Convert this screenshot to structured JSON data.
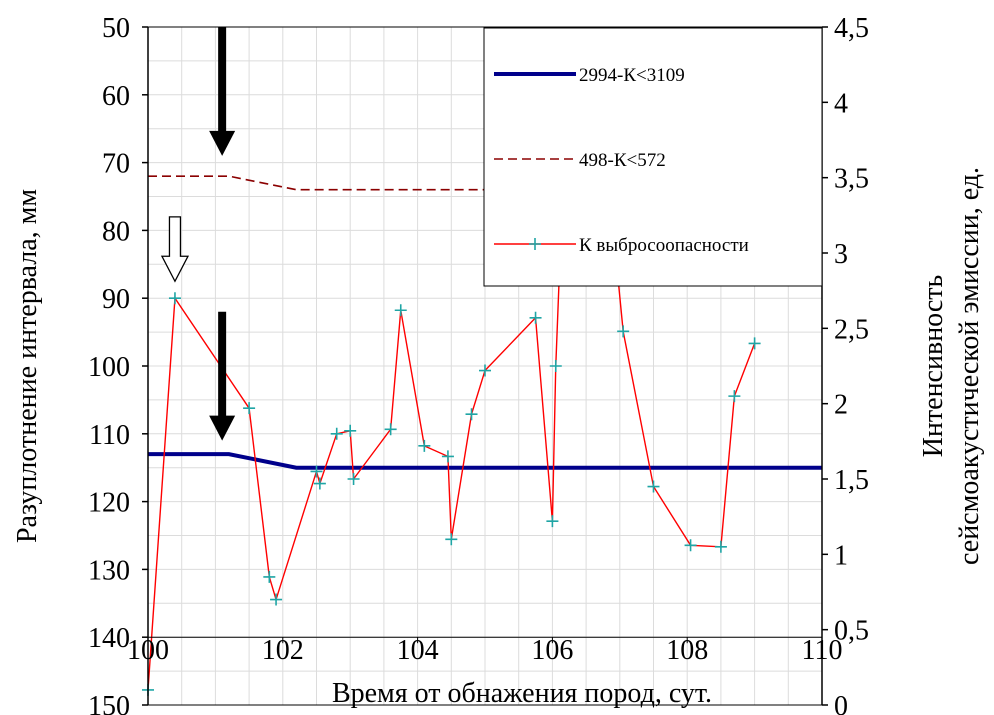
{
  "chart_data": {
    "type": "line",
    "xlabel": "Время от обнажения пород, сут.",
    "ylabel_left": "Разуплотнение интервала, мм",
    "ylabel_right_lines": [
      "Интенсивность",
      "сейсмоакустической эмиссии, ед."
    ],
    "xlim": [
      100,
      110
    ],
    "ylim_left": [
      50,
      150
    ],
    "ylim_right": [
      0,
      4.5
    ],
    "x_ticks": [
      "100",
      "102",
      "104",
      "106",
      "108",
      "110"
    ],
    "y_ticks_left": [
      "50",
      "60",
      "70",
      "80",
      "90",
      "100",
      "110",
      "120",
      "130",
      "140",
      "150"
    ],
    "y_ticks_right": [
      "4,5",
      "4",
      "3,5",
      "3",
      "2,5",
      "2",
      "1,5",
      "1",
      "0,5",
      "0"
    ],
    "grid": true,
    "legend_position": "top-right",
    "series": [
      {
        "name": "2994-К<3109",
        "axis": "left",
        "color": "#00008B",
        "style": "solid-thick",
        "points": [
          [
            100.0,
            113
          ],
          [
            101.2,
            113
          ],
          [
            102.2,
            115
          ],
          [
            110.0,
            115
          ]
        ]
      },
      {
        "name": "498-К<572",
        "axis": "left",
        "color": "#8B0000",
        "style": "dashed",
        "points": [
          [
            100.0,
            72
          ],
          [
            101.2,
            72
          ],
          [
            102.2,
            74
          ],
          [
            110.0,
            74
          ]
        ]
      },
      {
        "name": "К выбросоопасности",
        "axis": "right",
        "color": "#FF0000",
        "marker_color": "#1FA5A5",
        "style": "line-markers",
        "points": [
          [
            100.0,
            0.1
          ],
          [
            100.4,
            2.7
          ],
          [
            101.5,
            1.97
          ],
          [
            101.8,
            0.85
          ],
          [
            101.9,
            0.7
          ],
          [
            102.5,
            1.55
          ],
          [
            102.55,
            1.47
          ],
          [
            102.8,
            1.8
          ],
          [
            103.0,
            1.82
          ],
          [
            103.05,
            1.5
          ],
          [
            103.6,
            1.83
          ],
          [
            103.75,
            2.62
          ],
          [
            104.1,
            1.72
          ],
          [
            104.45,
            1.65
          ],
          [
            104.5,
            1.1
          ],
          [
            104.8,
            1.93
          ],
          [
            105.0,
            2.22
          ],
          [
            105.75,
            2.57
          ],
          [
            106.0,
            1.22
          ],
          [
            106.05,
            2.25
          ],
          [
            106.15,
            3.4
          ],
          [
            106.85,
            3.4
          ],
          [
            107.05,
            2.48
          ],
          [
            107.5,
            1.45
          ],
          [
            108.05,
            1.06
          ],
          [
            108.5,
            1.05
          ],
          [
            108.7,
            2.05
          ],
          [
            109.0,
            2.4
          ]
        ]
      }
    ],
    "annotations": [
      {
        "type": "arrow",
        "style": "filled",
        "x": 101.1,
        "from_left_y": 50,
        "to_left_y": 69
      },
      {
        "type": "arrow",
        "style": "hollow",
        "x": 100.4,
        "from_left_y": 78,
        "to_left_y": 87.5
      },
      {
        "type": "arrow",
        "style": "filled",
        "x": 101.1,
        "from_left_y": 92,
        "to_left_y": 111
      }
    ]
  }
}
